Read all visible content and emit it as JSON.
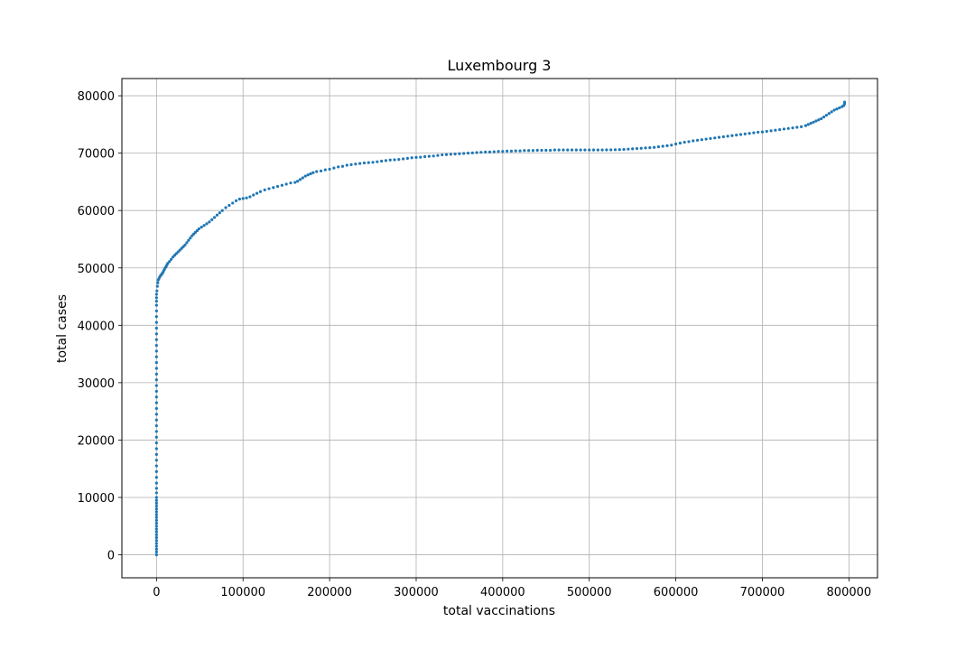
{
  "chart_data": {
    "type": "scatter",
    "title": "Luxembourg 3",
    "xlabel": "total vaccinations",
    "ylabel": "total cases",
    "xlim": [
      -40000,
      833000
    ],
    "ylim": [
      -4000,
      83000
    ],
    "xticks": [
      0,
      100000,
      200000,
      300000,
      400000,
      500000,
      600000,
      700000,
      800000
    ],
    "yticks": [
      0,
      10000,
      20000,
      30000,
      40000,
      50000,
      60000,
      70000,
      80000
    ],
    "grid": true,
    "marker_color": "#1f77b4",
    "points": [
      [
        0,
        0
      ],
      [
        0,
        500
      ],
      [
        0,
        1000
      ],
      [
        0,
        1500
      ],
      [
        0,
        2000
      ],
      [
        0,
        2500
      ],
      [
        0,
        3000
      ],
      [
        0,
        3500
      ],
      [
        0,
        4000
      ],
      [
        0,
        4500
      ],
      [
        0,
        5000
      ],
      [
        0,
        5500
      ],
      [
        0,
        6000
      ],
      [
        0,
        6500
      ],
      [
        0,
        7000
      ],
      [
        0,
        7500
      ],
      [
        0,
        8000
      ],
      [
        0,
        8500
      ],
      [
        0,
        9000
      ],
      [
        0,
        9500
      ],
      [
        0,
        10000
      ],
      [
        0,
        10800
      ],
      [
        0,
        11600
      ],
      [
        0,
        12500
      ],
      [
        0,
        13500
      ],
      [
        0,
        14500
      ],
      [
        0,
        15500
      ],
      [
        0,
        16500
      ],
      [
        0,
        17500
      ],
      [
        0,
        18500
      ],
      [
        0,
        19500
      ],
      [
        0,
        20500
      ],
      [
        0,
        21500
      ],
      [
        0,
        22500
      ],
      [
        0,
        23500
      ],
      [
        0,
        24500
      ],
      [
        0,
        25500
      ],
      [
        0,
        26500
      ],
      [
        0,
        27500
      ],
      [
        0,
        28500
      ],
      [
        0,
        29500
      ],
      [
        0,
        30500
      ],
      [
        0,
        31500
      ],
      [
        0,
        32500
      ],
      [
        0,
        33500
      ],
      [
        0,
        34500
      ],
      [
        0,
        35500
      ],
      [
        0,
        36500
      ],
      [
        0,
        37500
      ],
      [
        0,
        38500
      ],
      [
        0,
        39500
      ],
      [
        0,
        40500
      ],
      [
        0,
        41500
      ],
      [
        0,
        42500
      ],
      [
        0,
        43500
      ],
      [
        0,
        44200
      ],
      [
        0,
        44800
      ],
      [
        0,
        45400
      ],
      [
        500,
        46000
      ],
      [
        1000,
        46800
      ],
      [
        1500,
        47400
      ],
      [
        2000,
        47900
      ],
      [
        3000,
        48200
      ],
      [
        4000,
        48500
      ],
      [
        5000,
        48700
      ],
      [
        6000,
        48900
      ],
      [
        7000,
        49100
      ],
      [
        8000,
        49400
      ],
      [
        9000,
        49700
      ],
      [
        10000,
        50000
      ],
      [
        11000,
        50200
      ],
      [
        12000,
        50500
      ],
      [
        13000,
        50800
      ],
      [
        15000,
        51100
      ],
      [
        17000,
        51500
      ],
      [
        19000,
        51900
      ],
      [
        21000,
        52200
      ],
      [
        23000,
        52500
      ],
      [
        25000,
        52800
      ],
      [
        27000,
        53100
      ],
      [
        29000,
        53400
      ],
      [
        31000,
        53700
      ],
      [
        33000,
        54000
      ],
      [
        35000,
        54400
      ],
      [
        37000,
        54800
      ],
      [
        39000,
        55200
      ],
      [
        41000,
        55600
      ],
      [
        43000,
        55900
      ],
      [
        45000,
        56200
      ],
      [
        47000,
        56500
      ],
      [
        49000,
        56800
      ],
      [
        52000,
        57100
      ],
      [
        55000,
        57400
      ],
      [
        58000,
        57700
      ],
      [
        61000,
        58000
      ],
      [
        64000,
        58400
      ],
      [
        67000,
        58800
      ],
      [
        70000,
        59200
      ],
      [
        73000,
        59600
      ],
      [
        76000,
        60000
      ],
      [
        80000,
        60500
      ],
      [
        84000,
        60900
      ],
      [
        88000,
        61300
      ],
      [
        92000,
        61700
      ],
      [
        96000,
        62000
      ],
      [
        100000,
        62100
      ],
      [
        104000,
        62200
      ],
      [
        108000,
        62400
      ],
      [
        112000,
        62700
      ],
      [
        116000,
        63000
      ],
      [
        120000,
        63300
      ],
      [
        125000,
        63600
      ],
      [
        130000,
        63800
      ],
      [
        135000,
        64000
      ],
      [
        140000,
        64200
      ],
      [
        145000,
        64400
      ],
      [
        150000,
        64600
      ],
      [
        155000,
        64800
      ],
      [
        160000,
        64900
      ],
      [
        163000,
        65100
      ],
      [
        166000,
        65400
      ],
      [
        169000,
        65700
      ],
      [
        172000,
        66000
      ],
      [
        175000,
        66200
      ],
      [
        178000,
        66400
      ],
      [
        181000,
        66600
      ],
      [
        185000,
        66800
      ],
      [
        190000,
        66900
      ],
      [
        195000,
        67100
      ],
      [
        200000,
        67200
      ],
      [
        205000,
        67400
      ],
      [
        210000,
        67600
      ],
      [
        215000,
        67700
      ],
      [
        220000,
        67900
      ],
      [
        225000,
        68000
      ],
      [
        230000,
        68100
      ],
      [
        235000,
        68200
      ],
      [
        240000,
        68300
      ],
      [
        245000,
        68350
      ],
      [
        250000,
        68400
      ],
      [
        255000,
        68500
      ],
      [
        260000,
        68600
      ],
      [
        265000,
        68700
      ],
      [
        270000,
        68800
      ],
      [
        275000,
        68850
      ],
      [
        280000,
        68900
      ],
      [
        285000,
        69000
      ],
      [
        290000,
        69100
      ],
      [
        295000,
        69200
      ],
      [
        300000,
        69250
      ],
      [
        305000,
        69300
      ],
      [
        310000,
        69400
      ],
      [
        315000,
        69450
      ],
      [
        320000,
        69500
      ],
      [
        325000,
        69600
      ],
      [
        330000,
        69700
      ],
      [
        335000,
        69750
      ],
      [
        340000,
        69800
      ],
      [
        345000,
        69850
      ],
      [
        350000,
        69900
      ],
      [
        355000,
        69950
      ],
      [
        360000,
        70000
      ],
      [
        365000,
        70050
      ],
      [
        370000,
        70100
      ],
      [
        375000,
        70150
      ],
      [
        380000,
        70200
      ],
      [
        385000,
        70200
      ],
      [
        390000,
        70250
      ],
      [
        395000,
        70300
      ],
      [
        400000,
        70300
      ],
      [
        405000,
        70350
      ],
      [
        410000,
        70350
      ],
      [
        415000,
        70400
      ],
      [
        420000,
        70400
      ],
      [
        425000,
        70450
      ],
      [
        430000,
        70450
      ],
      [
        435000,
        70450
      ],
      [
        440000,
        70500
      ],
      [
        445000,
        70500
      ],
      [
        450000,
        70500
      ],
      [
        455000,
        70500
      ],
      [
        460000,
        70550
      ],
      [
        465000,
        70550
      ],
      [
        470000,
        70550
      ],
      [
        475000,
        70550
      ],
      [
        480000,
        70550
      ],
      [
        485000,
        70550
      ],
      [
        490000,
        70550
      ],
      [
        495000,
        70550
      ],
      [
        500000,
        70550
      ],
      [
        505000,
        70550
      ],
      [
        510000,
        70550
      ],
      [
        515000,
        70560
      ],
      [
        520000,
        70570
      ],
      [
        525000,
        70580
      ],
      [
        530000,
        70600
      ],
      [
        535000,
        70620
      ],
      [
        540000,
        70650
      ],
      [
        545000,
        70700
      ],
      [
        550000,
        70750
      ],
      [
        555000,
        70800
      ],
      [
        560000,
        70850
      ],
      [
        565000,
        70900
      ],
      [
        570000,
        70950
      ],
      [
        575000,
        71000
      ],
      [
        580000,
        71100
      ],
      [
        585000,
        71200
      ],
      [
        590000,
        71300
      ],
      [
        595000,
        71400
      ],
      [
        600000,
        71600
      ],
      [
        605000,
        71750
      ],
      [
        610000,
        71900
      ],
      [
        615000,
        72000
      ],
      [
        620000,
        72150
      ],
      [
        625000,
        72250
      ],
      [
        630000,
        72350
      ],
      [
        635000,
        72450
      ],
      [
        640000,
        72550
      ],
      [
        645000,
        72650
      ],
      [
        650000,
        72750
      ],
      [
        655000,
        72850
      ],
      [
        660000,
        72950
      ],
      [
        665000,
        73050
      ],
      [
        670000,
        73150
      ],
      [
        675000,
        73250
      ],
      [
        680000,
        73350
      ],
      [
        685000,
        73450
      ],
      [
        690000,
        73550
      ],
      [
        695000,
        73650
      ],
      [
        700000,
        73700
      ],
      [
        705000,
        73800
      ],
      [
        710000,
        73900
      ],
      [
        715000,
        74000
      ],
      [
        720000,
        74100
      ],
      [
        725000,
        74200
      ],
      [
        730000,
        74300
      ],
      [
        735000,
        74400
      ],
      [
        740000,
        74500
      ],
      [
        745000,
        74600
      ],
      [
        750000,
        74800
      ],
      [
        753000,
        75000
      ],
      [
        756000,
        75200
      ],
      [
        759000,
        75400
      ],
      [
        762000,
        75600
      ],
      [
        765000,
        75800
      ],
      [
        768000,
        76000
      ],
      [
        771000,
        76300
      ],
      [
        774000,
        76600
      ],
      [
        777000,
        76900
      ],
      [
        780000,
        77200
      ],
      [
        783000,
        77500
      ],
      [
        786000,
        77700
      ],
      [
        789000,
        77900
      ],
      [
        792000,
        78100
      ],
      [
        794000,
        78300
      ],
      [
        795000,
        78600
      ],
      [
        795000,
        78900
      ]
    ]
  }
}
